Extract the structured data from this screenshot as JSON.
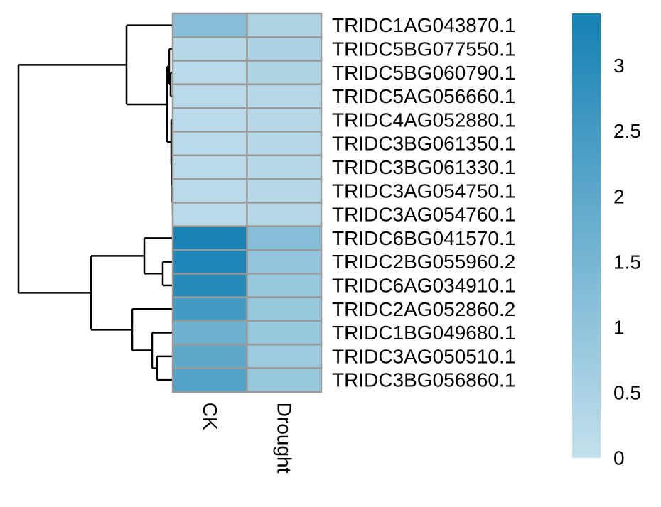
{
  "chart_data": {
    "type": "heatmap",
    "columns": [
      "CK",
      "Drought"
    ],
    "rows": [
      "TRIDC1AG043870.1",
      "TRIDC5BG077550.1",
      "TRIDC5BG060790.1",
      "TRIDC5AG056660.1",
      "TRIDC4AG052880.1",
      "TRIDC3BG061350.1",
      "TRIDC3BG061330.1",
      "TRIDC3AG054750.1",
      "TRIDC3AG054760.1",
      "TRIDC6BG041570.1",
      "TRIDC2BG055960.2",
      "TRIDC6AG034910.1",
      "TRIDC2AG052860.2",
      "TRIDC1BG049680.1",
      "TRIDC3AG050510.1",
      "TRIDC3BG056860.1"
    ],
    "values": [
      [
        1.2,
        0.4
      ],
      [
        0.3,
        0.5
      ],
      [
        0.2,
        0.4
      ],
      [
        0.2,
        0.3
      ],
      [
        0.2,
        0.3
      ],
      [
        0.2,
        0.3
      ],
      [
        0.2,
        0.3
      ],
      [
        0.2,
        0.3
      ],
      [
        0.2,
        0.3
      ],
      [
        3.35,
        1.2
      ],
      [
        3.2,
        0.95
      ],
      [
        3.05,
        0.85
      ],
      [
        2.5,
        0.9
      ],
      [
        1.7,
        0.85
      ],
      [
        2.0,
        0.75
      ],
      [
        2.2,
        0.9
      ]
    ],
    "colorbar": {
      "range": [
        0,
        3.4
      ],
      "ticks": [
        "0",
        "0.5",
        "1",
        "1.5",
        "2",
        "2.5",
        "3"
      ],
      "color_low": "#c4e0ec",
      "color_high": "#1581b4"
    },
    "dendrogram_row_order": "hierarchical clustering of rows",
    "cell_border_color": "#999999",
    "dendrogram_color": "#000000"
  }
}
